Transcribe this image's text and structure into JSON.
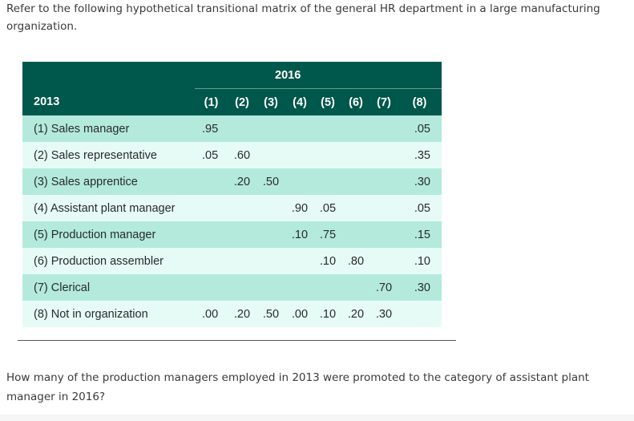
{
  "intro_text": "Refer to the following hypothetical transitional matrix of the general HR department in a large manufacturing organization.",
  "matrix": {
    "header_year_to": "2016",
    "header_year_from": "2013",
    "columns": [
      "(1)",
      "(2)",
      "(3)",
      "(4)",
      "(5)",
      "(6)",
      "(7)",
      "(8)"
    ],
    "rows": [
      {
        "label": "(1) Sales manager",
        "cells": [
          ".95",
          "",
          "",
          "",
          "",
          "",
          "",
          ".05"
        ]
      },
      {
        "label": "(2) Sales representative",
        "cells": [
          ".05",
          ".60",
          "",
          "",
          "",
          "",
          "",
          ".35"
        ]
      },
      {
        "label": "(3) Sales apprentice",
        "cells": [
          "",
          ".20",
          ".50",
          "",
          "",
          "",
          "",
          ".30"
        ]
      },
      {
        "label": "(4) Assistant plant manager",
        "cells": [
          "",
          "",
          "",
          ".90",
          ".05",
          "",
          "",
          ".05"
        ]
      },
      {
        "label": "(5) Production manager",
        "cells": [
          "",
          "",
          "",
          ".10",
          ".75",
          "",
          "",
          ".15"
        ]
      },
      {
        "label": "(6) Production assembler",
        "cells": [
          "",
          "",
          "",
          "",
          ".10",
          ".80",
          "",
          ".10"
        ]
      },
      {
        "label": "(7) Clerical",
        "cells": [
          "",
          "",
          "",
          "",
          "",
          "",
          ".70",
          ".30"
        ]
      },
      {
        "label": "(8) Not in organization",
        "cells": [
          ".00",
          ".20",
          ".50",
          ".00",
          ".10",
          ".20",
          ".30",
          ""
        ]
      }
    ]
  },
  "question_text": "How many of the production managers employed in 2013 were promoted to the category of assistant plant manager in 2016?"
}
